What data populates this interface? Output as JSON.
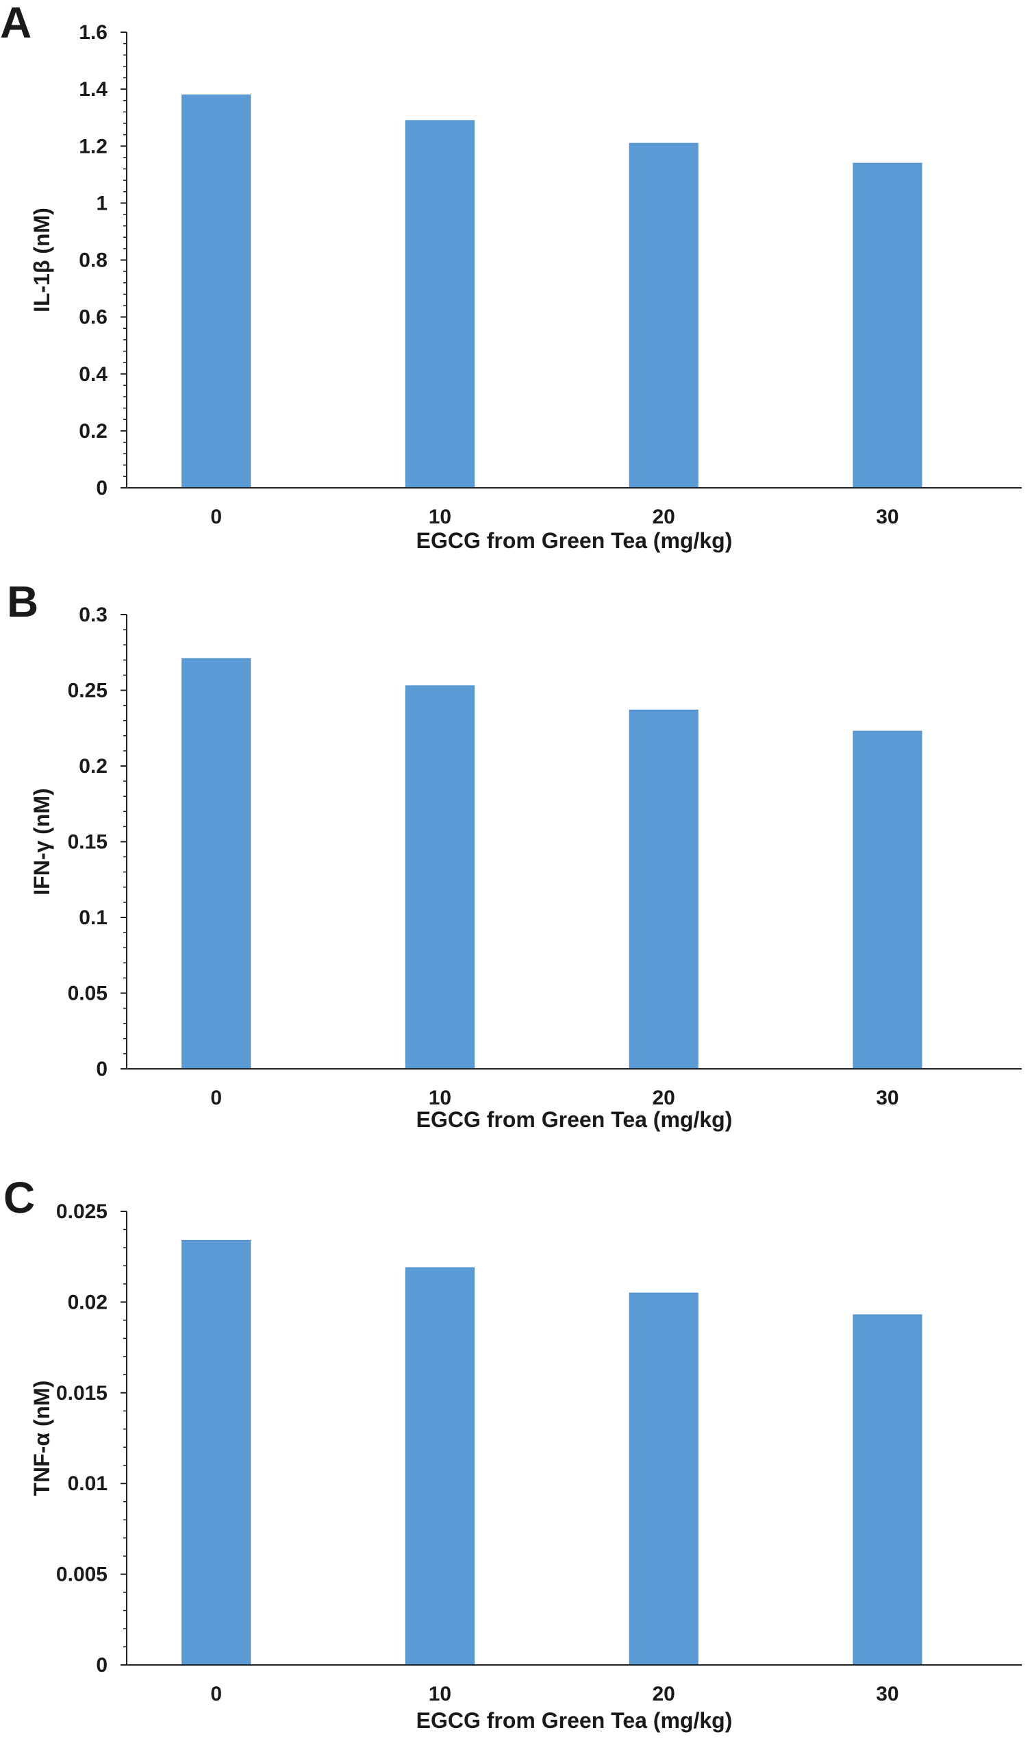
{
  "chart_data": [
    {
      "type": "bar",
      "panel": "A",
      "categories": [
        "0",
        "10",
        "20",
        "30"
      ],
      "values": [
        1.38,
        1.29,
        1.21,
        1.14
      ],
      "xlabel": "EGCG from Green Tea (mg/kg)",
      "ylabel": "IL-1β (nM)",
      "ylim": [
        0,
        1.6
      ],
      "yticks": [
        "0",
        "0.2",
        "0.4",
        "0.6",
        "0.8",
        "1",
        "1.2",
        "1.4",
        "1.6"
      ],
      "bar_color": "#5b9bd5",
      "grid": false
    },
    {
      "type": "bar",
      "panel": "B",
      "categories": [
        "0",
        "10",
        "20",
        "30"
      ],
      "values": [
        0.271,
        0.253,
        0.237,
        0.223
      ],
      "xlabel": "EGCG from Green Tea (mg/kg)",
      "ylabel": "IFN-γ (nM)",
      "ylim": [
        0,
        0.3
      ],
      "yticks": [
        "0",
        "0.05",
        "0.1",
        "0.15",
        "0.2",
        "0.25",
        "0.3"
      ],
      "bar_color": "#5b9bd5",
      "grid": false
    },
    {
      "type": "bar",
      "panel": "C",
      "categories": [
        "0",
        "10",
        "20",
        "30"
      ],
      "values": [
        0.0234,
        0.0219,
        0.0205,
        0.0193
      ],
      "xlabel": "EGCG from Green Tea (mg/kg)",
      "ylabel": "TNF-α (nM)",
      "ylim": [
        0,
        0.025
      ],
      "yticks": [
        "0",
        "0.005",
        "0.01",
        "0.015",
        "0.02",
        "0.025"
      ],
      "bar_color": "#5b9bd5",
      "grid": false
    }
  ]
}
